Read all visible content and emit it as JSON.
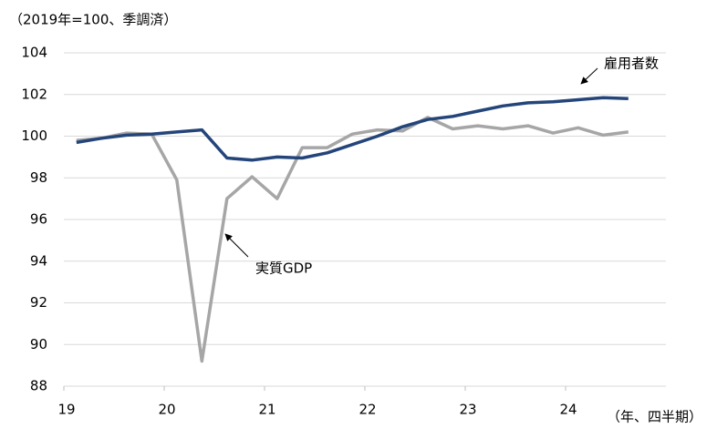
{
  "chart_data": {
    "type": "line",
    "y_unit_label": "（2019年=100、季調済）",
    "x_unit_label": "（年、四半期）",
    "x": [
      19.125,
      19.375,
      19.625,
      19.875,
      20.125,
      20.375,
      20.625,
      20.875,
      21.125,
      21.375,
      21.625,
      21.875,
      22.125,
      22.375,
      22.625,
      22.875,
      23.125,
      23.375,
      23.625,
      23.875,
      24.125,
      24.375,
      24.625
    ],
    "series": [
      {
        "name": "雇用者数",
        "color": "#24457a",
        "values": [
          99.7,
          99.9,
          100.05,
          100.1,
          100.2,
          100.3,
          98.95,
          98.85,
          99.0,
          98.95,
          99.2,
          99.6,
          100.0,
          100.45,
          100.8,
          100.95,
          101.2,
          101.45,
          101.6,
          101.65,
          101.75,
          101.85,
          101.8
        ]
      },
      {
        "name": "実質GDP",
        "color": "#a6a6a6",
        "values": [
          99.8,
          99.9,
          100.15,
          100.1,
          97.9,
          89.2,
          97.0,
          98.05,
          97.0,
          99.45,
          99.45,
          100.1,
          100.3,
          100.25,
          100.9,
          100.35,
          100.5,
          100.35,
          100.5,
          100.15,
          100.4,
          100.05,
          100.2
        ]
      }
    ],
    "xlim": [
      19,
      25
    ],
    "xticks": [
      19,
      20,
      21,
      22,
      23,
      24
    ],
    "ylim": [
      88,
      104
    ],
    "yticks": [
      88,
      90,
      92,
      94,
      96,
      98,
      100,
      102,
      104
    ],
    "grid": true
  }
}
